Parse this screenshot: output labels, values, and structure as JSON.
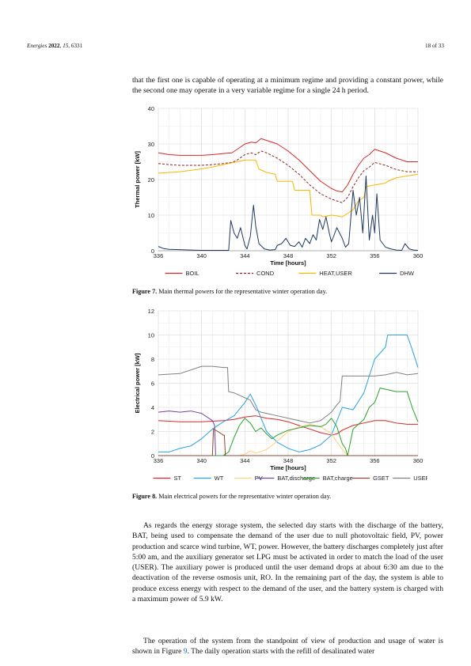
{
  "header": {
    "journal": "Energies",
    "year": "2022",
    "volume": "15",
    "article": "6331",
    "page_label": "18 of 33"
  },
  "text": {
    "intro": "that the first one is capable of operating at a minimum regime and providing a constant power, while the second one may operate in a very variable regime for a single 24 h period.",
    "para1": "As regards the energy storage system, the selected day starts with the discharge of the battery, BAT, being used to compensate the demand of the user due to null photovoltaic field, PV, power production and scarce wind turbine, WT, power. However, the battery discharges completely just after 5:00 am, and the auxiliary generator set LPG must be activated in order to match the load of the user (USER). The auxiliary power is produced until the user demand drops at about 6:30 am due to the deactivation of the reverse osmosis unit, RO. In the remaining part of the day, the system is able to produce excess energy with respect to the demand of the user, and the battery system is charged with a maximum power of 5.9 kW.",
    "para2_a": "The operation of the system from the standpoint of view of production and usage of water is shown in Figure ",
    "para2_link": "9",
    "para2_b": ". The daily operation starts with the refill of desalinated water"
  },
  "figure7": {
    "label": "Figure 7.",
    "caption": "Main thermal powers for the representative winter operation day."
  },
  "figure8": {
    "label": "Figure 8.",
    "caption": "Main electrical powers for the representative winter operation day."
  },
  "chart_data": [
    {
      "type": "line",
      "xlabel": "Time [hours]",
      "ylabel": "Thermal power [kW]",
      "xlim": [
        336,
        360
      ],
      "ylim": [
        0,
        40
      ],
      "xticks": [
        336,
        340,
        344,
        348,
        352,
        356,
        360
      ],
      "yticks": [
        0,
        10,
        20,
        30,
        40
      ],
      "grid": true,
      "legend": "bottom",
      "series": [
        {
          "name": "BOIL",
          "color": "#d62728",
          "dash": "",
          "x": [
            336,
            337,
            338,
            339,
            340,
            341,
            342,
            342.8,
            343.3,
            344,
            344.6,
            345,
            345.5,
            346,
            347,
            348,
            349,
            350,
            351,
            352,
            352.5,
            353,
            353.5,
            354,
            354.5,
            355,
            355.5,
            356,
            357,
            358,
            359,
            360
          ],
          "y": [
            27.5,
            27,
            26.8,
            26.8,
            26.8,
            27,
            27.3,
            27.5,
            28.5,
            30,
            30.5,
            30.3,
            31.5,
            31,
            30,
            28,
            25.5,
            22.5,
            19.5,
            17.5,
            16.8,
            16.5,
            18.5,
            21.5,
            24,
            26,
            27,
            28.5,
            27.5,
            26,
            25,
            25
          ]
        },
        {
          "name": "COND",
          "color": "#8b2520",
          "dash": "3,2",
          "x": [
            336,
            337,
            338,
            339,
            340,
            341,
            342,
            342.8,
            343.3,
            344,
            344.6,
            345,
            345.5,
            346,
            347,
            348,
            349,
            350,
            351,
            352,
            352.5,
            353,
            353.5,
            354,
            354.5,
            355,
            355.5,
            356,
            357,
            358,
            359,
            360
          ],
          "y": [
            24.5,
            24.2,
            24,
            24,
            24,
            24.2,
            24.5,
            24.8,
            25.5,
            27,
            27.5,
            27,
            28,
            27.5,
            26,
            24,
            21.5,
            18.5,
            16,
            14.5,
            14,
            13.5,
            15,
            18,
            20.5,
            22.5,
            23.5,
            24.8,
            24,
            22.8,
            22.2,
            22.2
          ]
        },
        {
          "name": "HEAT,USER",
          "color": "#f5b800",
          "dash": "",
          "x": [
            336,
            338,
            340,
            341,
            342,
            343,
            344,
            344.3,
            345,
            345.3,
            346,
            346.8,
            347,
            348.4,
            348.6,
            350,
            350.2,
            351,
            351.2,
            352,
            352.5,
            353,
            354,
            354.5,
            355,
            355.2,
            356,
            357,
            357.2,
            358,
            359,
            360
          ],
          "y": [
            21.8,
            22.2,
            23,
            23.5,
            24.2,
            24.8,
            25.5,
            25.5,
            25.5,
            23,
            22,
            21.5,
            19.5,
            19.5,
            17,
            17,
            10,
            10,
            9.5,
            10,
            9.8,
            9.5,
            11.5,
            14,
            15,
            18,
            18.5,
            19,
            19.5,
            20.5,
            21,
            21.5
          ]
        },
        {
          "name": "DHW",
          "color": "#1f3a60",
          "dash": "",
          "x": [
            336,
            336.5,
            337,
            338,
            339,
            340,
            341,
            342,
            342.5,
            342.7,
            343,
            343.3,
            343.6,
            344,
            344.2,
            344.5,
            344.8,
            345,
            345.3,
            345.8,
            346.3,
            346.8,
            347,
            347.4,
            347.8,
            348.2,
            348.6,
            349,
            349.3,
            349.6,
            350,
            350.3,
            350.6,
            350.9,
            351.2,
            351.5,
            351.8,
            352,
            352.2,
            352.5,
            353,
            353.3,
            353.6,
            354,
            354.3,
            354.6,
            354.9,
            355.2,
            355.5,
            355.8,
            356,
            356.2,
            356.5,
            357,
            357.5,
            358,
            358.5,
            358.8,
            359.2,
            359.6,
            360
          ],
          "y": [
            1.2,
            0.6,
            0.4,
            0.3,
            0.2,
            0.1,
            0.1,
            0.1,
            0.1,
            8.5,
            5,
            3.5,
            6.5,
            1.5,
            0.5,
            4,
            12.8,
            7,
            2,
            0.5,
            0.2,
            0.3,
            1.5,
            2,
            3.5,
            1.5,
            1.2,
            2.5,
            1,
            3.5,
            2,
            4.5,
            3,
            8.8,
            6,
            9.5,
            5,
            2.5,
            4,
            6.5,
            3.5,
            1,
            2,
            17,
            10,
            15,
            5,
            21,
            3,
            10,
            5,
            16,
            3,
            1,
            0.5,
            0.2,
            0.1,
            2,
            0.5,
            0.2,
            0.1
          ]
        }
      ]
    },
    {
      "type": "line",
      "xlabel": "Time [hours]",
      "ylabel": "Electrical power [kW]",
      "xlim": [
        336,
        360
      ],
      "ylim": [
        0,
        12
      ],
      "xticks": [
        336,
        340,
        344,
        348,
        352,
        356,
        360
      ],
      "yticks": [
        0,
        2,
        4,
        6,
        8,
        10,
        12
      ],
      "grid": true,
      "legend": "bottom",
      "series": [
        {
          "name": "ST",
          "color": "#d62728",
          "dash": "",
          "x": [
            336,
            338,
            340,
            342,
            343,
            344,
            345,
            346,
            347,
            348,
            349,
            350,
            351,
            352,
            352.5,
            353,
            354,
            355,
            356,
            357,
            358,
            359,
            360
          ],
          "y": [
            2.9,
            2.8,
            2.8,
            2.9,
            3.0,
            3.2,
            3.3,
            3.1,
            3.0,
            2.8,
            2.5,
            2.2,
            1.9,
            1.7,
            1.8,
            2.1,
            2.5,
            2.7,
            2.9,
            2.9,
            2.7,
            2.6,
            2.6
          ]
        },
        {
          "name": "WT",
          "color": "#29a3e0",
          "dash": "",
          "x": [
            336,
            337,
            338,
            339,
            340,
            341,
            342,
            343,
            344,
            344.5,
            345,
            346,
            347,
            348,
            349,
            350,
            351,
            352,
            353,
            354,
            355,
            356,
            357,
            357.2,
            358,
            359,
            359.5,
            360
          ],
          "y": [
            0.3,
            0.3,
            0.6,
            0.8,
            1.4,
            2.2,
            2.8,
            3.3,
            4.4,
            5.1,
            4.2,
            2.0,
            1.1,
            0.6,
            0.3,
            0.5,
            0.9,
            1.7,
            4.0,
            3.8,
            5.2,
            8.0,
            9.0,
            10.0,
            10.0,
            10.0,
            8.7,
            7.3
          ]
        },
        {
          "name": "PV",
          "color": "#ffd080",
          "dash": "",
          "x": [
            336,
            343.5,
            344,
            344.5,
            345,
            346,
            347,
            348,
            349,
            350,
            351,
            352,
            353,
            353.5,
            360
          ],
          "y": [
            0,
            0,
            0.1,
            0.4,
            0.2,
            0.5,
            1.2,
            2.0,
            2.4,
            2.6,
            2.4,
            1.8,
            0.5,
            0,
            0
          ]
        },
        {
          "name": "BAT,discharge",
          "color": "#7a3fa0",
          "dash": "",
          "x": [
            336,
            337,
            338,
            339,
            340,
            341,
            341.2,
            341.3,
            360
          ],
          "y": [
            3.6,
            3.7,
            3.6,
            3.7,
            3.5,
            2.9,
            2.5,
            0,
            0
          ]
        },
        {
          "name": "BAT,charge",
          "color": "#2ca02c",
          "dash": "",
          "x": [
            336,
            341,
            342,
            342.5,
            343,
            343.5,
            344,
            344.5,
            345,
            345.5,
            346,
            346.5,
            347,
            348,
            349,
            350,
            351,
            351.5,
            352,
            352.5,
            353,
            353.3,
            353.5,
            354,
            355,
            355.5,
            356,
            356.5,
            357,
            358,
            359,
            359.5,
            360
          ],
          "y": [
            0,
            0,
            0,
            0.3,
            1.5,
            2.5,
            3.1,
            2.7,
            2.0,
            2.3,
            1.8,
            1.4,
            1.7,
            2.1,
            2.3,
            2.5,
            2.4,
            2.6,
            3.1,
            2.4,
            1.0,
            0.6,
            0,
            2.2,
            3.0,
            4.0,
            4.4,
            5.6,
            5.5,
            5.3,
            5.3,
            3.9,
            2.8
          ]
        },
        {
          "name": "GSET",
          "color": "#8b4a2b",
          "dash": "",
          "x": [
            336,
            340.9,
            341,
            341.1,
            341.5,
            342,
            342.1,
            342.2,
            360
          ],
          "y": [
            0,
            0,
            0,
            2.2,
            2.0,
            1.7,
            1.7,
            0,
            0
          ]
        },
        {
          "name": "USER",
          "color": "#808080",
          "dash": "",
          "x": [
            336,
            338,
            339,
            340,
            341,
            342,
            342.4,
            342.5,
            343,
            344,
            344.5,
            345,
            345.5,
            346,
            347,
            348,
            349,
            350,
            351,
            352,
            352.5,
            352.8,
            353,
            354,
            355,
            356,
            357,
            358,
            359,
            360
          ],
          "y": [
            6.7,
            6.8,
            7.1,
            7.4,
            7.4,
            7.3,
            7.3,
            5.3,
            5.2,
            4.8,
            4.6,
            3.8,
            3.6,
            3.5,
            3.3,
            3.1,
            2.9,
            2.7,
            2.9,
            3.6,
            4.2,
            4.5,
            6.6,
            6.6,
            6.6,
            6.6,
            6.7,
            6.9,
            6.7,
            6.8
          ]
        }
      ]
    }
  ]
}
